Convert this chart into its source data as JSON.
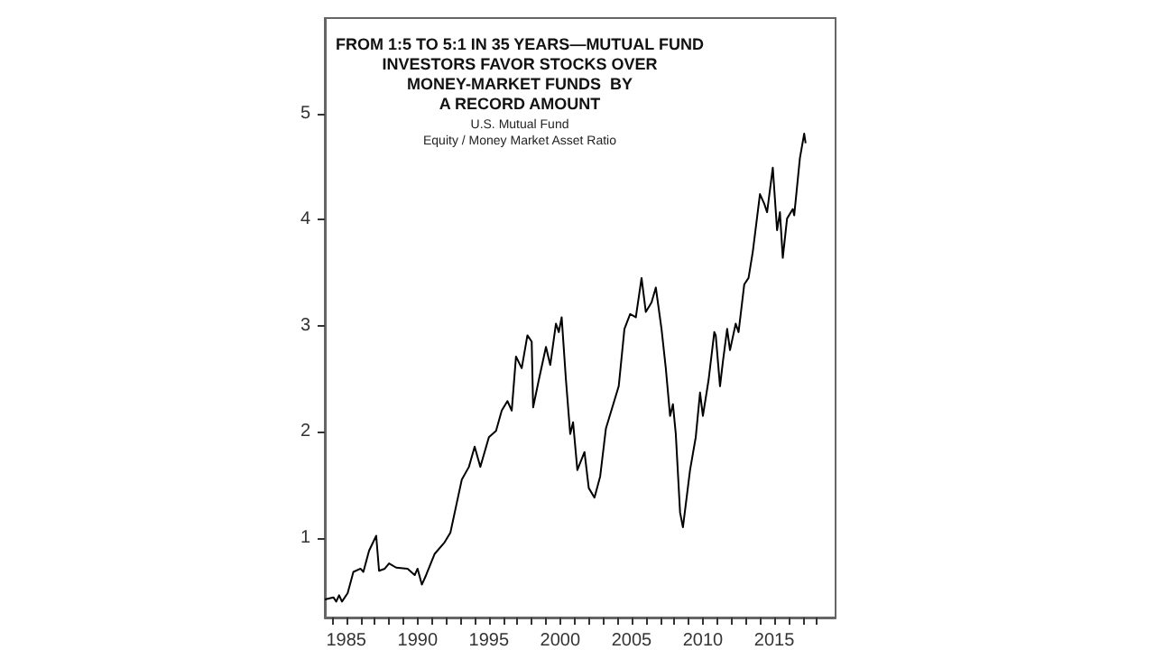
{
  "chart_data": {
    "type": "line",
    "title": "FROM 1:5 TO 5:1 IN 35 YEARS—MUTUAL FUND\nINVESTORS FAVOR STOCKS OVER\nMONEY-MARKET FUNDS  BY\nA RECORD AMOUNT",
    "subtitle": "U.S. Mutual Fund\nEquity / Money Market Asset Ratio",
    "x": [
      1983.5,
      1984.1,
      1984.3,
      1984.5,
      1984.7,
      1985.1,
      1985.5,
      1986.0,
      1986.2,
      1986.6,
      1987.1,
      1987.3,
      1987.7,
      1988.0,
      1988.5,
      1989.3,
      1989.8,
      1990.0,
      1990.3,
      1990.6,
      1991.2,
      1991.9,
      1992.3,
      1992.7,
      1993.1,
      1993.6,
      1994.0,
      1994.4,
      1995.0,
      1995.5,
      1995.9,
      1996.3,
      1996.6,
      1996.9,
      1997.3,
      1997.7,
      1998.0,
      1998.1,
      1998.5,
      1999.0,
      1999.3,
      1999.7,
      1999.9,
      2000.1,
      2000.4,
      2000.7,
      2000.9,
      2001.2,
      2001.7,
      2002.0,
      2002.4,
      2002.8,
      2003.2,
      2004.1,
      2004.5,
      2004.9,
      2005.3,
      2005.7,
      2006.0,
      2006.4,
      2006.7,
      2007.1,
      2007.4,
      2007.7,
      2007.9,
      2008.1,
      2008.4,
      2008.6,
      2009.1,
      2009.5,
      2009.8,
      2010.0,
      2010.4,
      2010.8,
      2010.9,
      2011.2,
      2011.4,
      2011.7,
      2011.9,
      2012.3,
      2012.5,
      2012.9,
      2013.2,
      2013.5,
      2014.0,
      2014.3,
      2014.5,
      2014.9,
      2015.2,
      2015.4,
      2015.6,
      2015.9,
      2016.3,
      2016.4,
      2016.8,
      2017.1,
      2017.2
    ],
    "series": [
      {
        "color": "#000000",
        "values": [
          0.42,
          0.44,
          0.4,
          0.46,
          0.4,
          0.48,
          0.68,
          0.71,
          0.68,
          0.88,
          1.02,
          0.69,
          0.71,
          0.76,
          0.72,
          0.71,
          0.65,
          0.71,
          0.56,
          0.65,
          0.85,
          0.96,
          1.05,
          1.3,
          1.55,
          1.67,
          1.86,
          1.67,
          1.95,
          2.01,
          2.2,
          2.29,
          2.2,
          2.71,
          2.6,
          2.91,
          2.85,
          2.23,
          2.49,
          2.8,
          2.63,
          3.02,
          2.94,
          3.08,
          2.49,
          1.98,
          2.09,
          1.64,
          1.81,
          1.47,
          1.38,
          1.58,
          2.03,
          2.43,
          2.97,
          3.11,
          3.08,
          3.45,
          3.13,
          3.22,
          3.36,
          2.97,
          2.6,
          2.15,
          2.26,
          1.98,
          1.24,
          1.1,
          1.64,
          1.95,
          2.37,
          2.15,
          2.49,
          2.94,
          2.91,
          2.43,
          2.66,
          2.97,
          2.77,
          3.02,
          2.94,
          3.39,
          3.45,
          3.7,
          4.24,
          4.15,
          4.07,
          4.49,
          3.9,
          4.07,
          3.64,
          4.01,
          4.1,
          4.04,
          4.58,
          4.81,
          4.72
        ]
      }
    ],
    "xlim": [
      1983.5,
      2019.3
    ],
    "xticks": [
      {
        "value": 1984,
        "label": null
      },
      1985,
      {
        "value": 1986,
        "label": null
      },
      {
        "value": 1987,
        "label": null
      },
      {
        "value": 1988,
        "label": null
      },
      {
        "value": 1989,
        "label": null
      },
      1990,
      {
        "value": 1991,
        "label": null
      },
      {
        "value": 1992,
        "label": null
      },
      {
        "value": 1993,
        "label": null
      },
      {
        "value": 1994,
        "label": null
      },
      1995,
      {
        "value": 1996,
        "label": null
      },
      {
        "value": 1997,
        "label": null
      },
      {
        "value": 1998,
        "label": null
      },
      {
        "value": 1999,
        "label": null
      },
      2000,
      {
        "value": 2001,
        "label": null
      },
      {
        "value": 2002,
        "label": null
      },
      {
        "value": 2003,
        "label": null
      },
      {
        "value": 2004,
        "label": null
      },
      2005,
      {
        "value": 2006,
        "label": null
      },
      {
        "value": 2007,
        "label": null
      },
      {
        "value": 2008,
        "label": null
      },
      {
        "value": 2009,
        "label": null
      },
      2010,
      {
        "value": 2011,
        "label": null
      },
      {
        "value": 2012,
        "label": null
      },
      {
        "value": 2013,
        "label": null
      },
      {
        "value": 2014,
        "label": null
      },
      2015,
      {
        "value": 2016,
        "label": null
      },
      {
        "value": 2017,
        "label": null
      },
      {
        "value": 2018,
        "label": null
      }
    ],
    "ylim": [
      0.25,
      5.9
    ],
    "yticks": [
      1,
      2,
      3,
      4,
      5
    ],
    "grid": false,
    "marker": "none",
    "line_style": "solid"
  }
}
